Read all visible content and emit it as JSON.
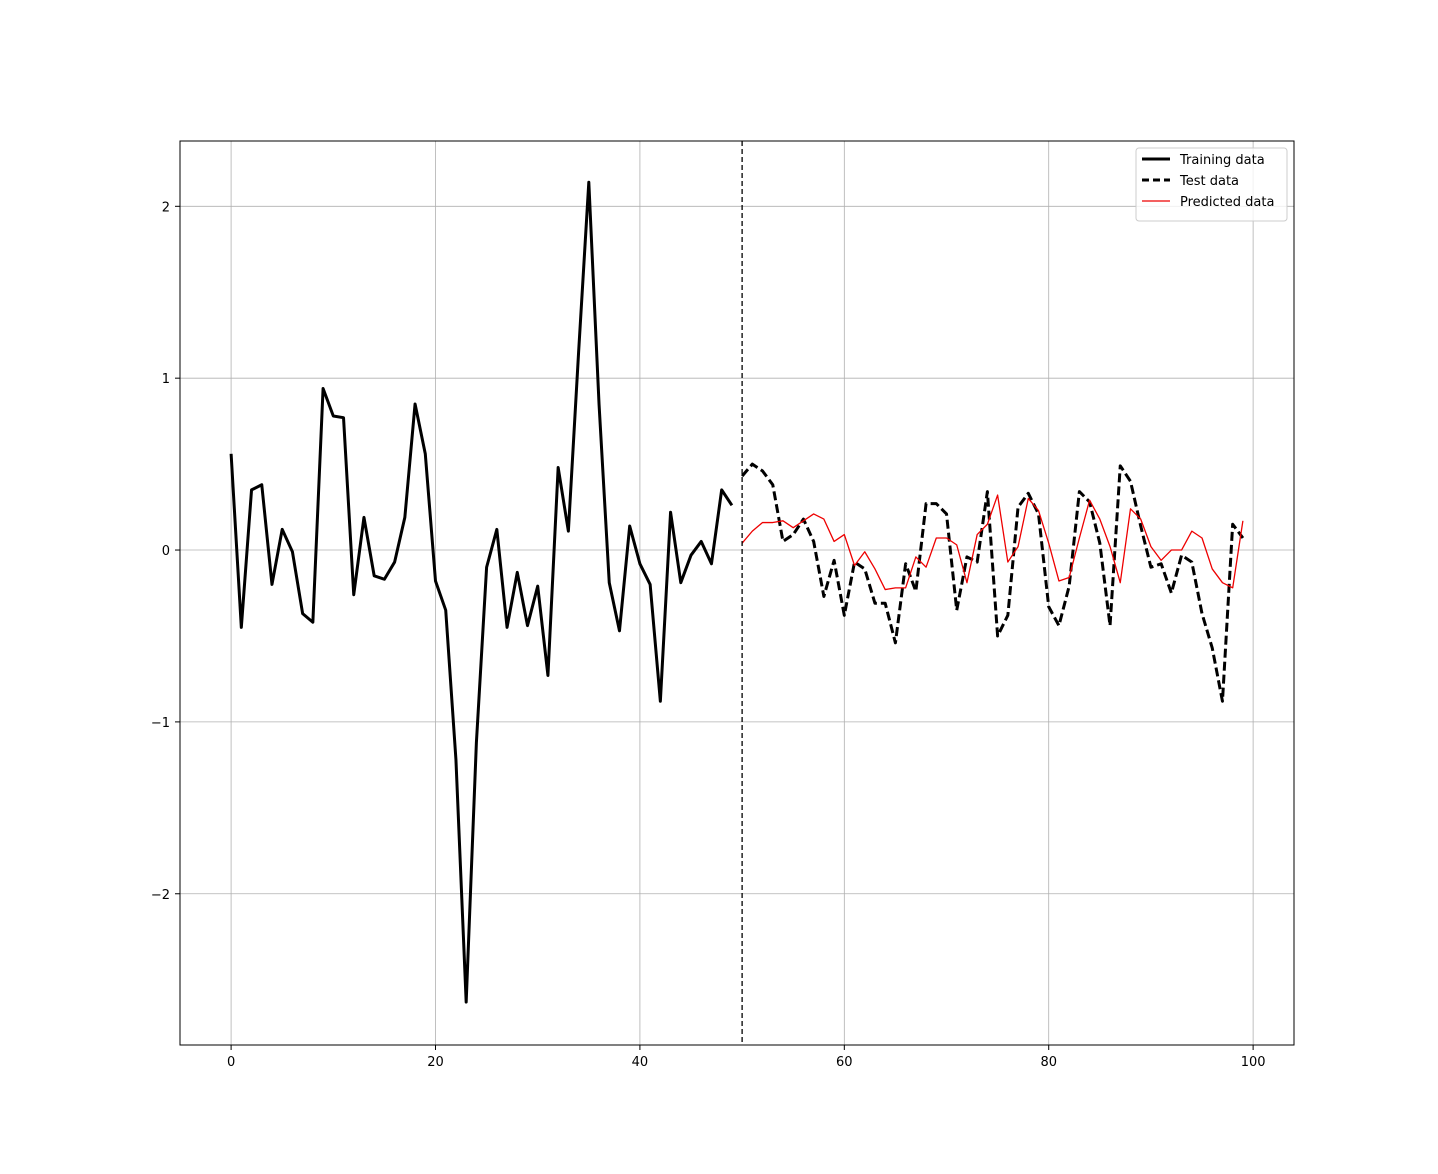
{
  "chart_data": {
    "type": "line",
    "title": "",
    "xlabel": "",
    "ylabel": "",
    "xlim": [
      -5,
      104
    ],
    "ylim": [
      -2.88,
      2.38
    ],
    "grid": true,
    "legend_position": "top-right",
    "x_ticks": [
      0,
      20,
      40,
      60,
      80,
      100
    ],
    "x_tick_labels": [
      "0",
      "20",
      "40",
      "60",
      "80",
      "100"
    ],
    "y_ticks": [
      -2,
      -1,
      0,
      1,
      2
    ],
    "y_tick_labels": [
      "−2",
      "−1",
      "0",
      "1",
      "2"
    ],
    "split_line_x": 50,
    "series": [
      {
        "name": "Training data",
        "color": "#000000",
        "style": "solid",
        "x_start": 0,
        "values": [
          0.56,
          -0.45,
          0.35,
          0.38,
          -0.2,
          0.12,
          -0.01,
          -0.37,
          -0.42,
          0.94,
          0.78,
          0.77,
          -0.26,
          0.19,
          -0.15,
          -0.17,
          -0.07,
          0.19,
          0.85,
          0.56,
          -0.18,
          -0.35,
          -1.22,
          -2.63,
          -1.12,
          -0.1,
          0.12,
          -0.45,
          -0.13,
          -0.44,
          -0.21,
          -0.73,
          0.48,
          0.11,
          1.15,
          2.14,
          0.85,
          -0.19,
          -0.47,
          0.14,
          -0.08,
          -0.2,
          -0.88,
          0.22,
          -0.19,
          -0.03,
          0.05,
          -0.08,
          0.35,
          0.26
        ]
      },
      {
        "name": "Test data",
        "color": "#000000",
        "style": "dashed",
        "x_start": 50,
        "values": [
          0.43,
          0.5,
          0.46,
          0.38,
          0.05,
          0.09,
          0.18,
          0.05,
          -0.27,
          -0.06,
          -0.38,
          -0.07,
          -0.11,
          -0.31,
          -0.31,
          -0.54,
          -0.08,
          -0.24,
          0.27,
          0.27,
          0.21,
          -0.35,
          -0.04,
          -0.07,
          0.34,
          -0.5,
          -0.38,
          0.25,
          0.33,
          0.21,
          -0.33,
          -0.44,
          -0.21,
          0.34,
          0.28,
          0.04,
          -0.44,
          0.49,
          0.4,
          0.14,
          -0.1,
          -0.08,
          -0.25,
          -0.03,
          -0.07,
          -0.37,
          -0.57,
          -0.88,
          0.15,
          0.07
        ]
      },
      {
        "name": "Predicted data",
        "color": "#ee0000",
        "style": "solid",
        "x_start": 50,
        "values": [
          0.04,
          0.11,
          0.16,
          0.16,
          0.17,
          0.13,
          0.17,
          0.21,
          0.18,
          0.05,
          0.09,
          -0.09,
          -0.01,
          -0.11,
          -0.23,
          -0.22,
          -0.22,
          -0.04,
          -0.1,
          0.07,
          0.07,
          0.03,
          -0.19,
          0.09,
          0.15,
          0.32,
          -0.07,
          0.02,
          0.3,
          0.23,
          0.04,
          -0.18,
          -0.16,
          0.07,
          0.29,
          0.18,
          0.02,
          -0.19,
          0.24,
          0.18,
          0.02,
          -0.06,
          0.0,
          0.0,
          0.11,
          0.07,
          -0.11,
          -0.19,
          -0.22,
          0.17
        ]
      }
    ]
  }
}
